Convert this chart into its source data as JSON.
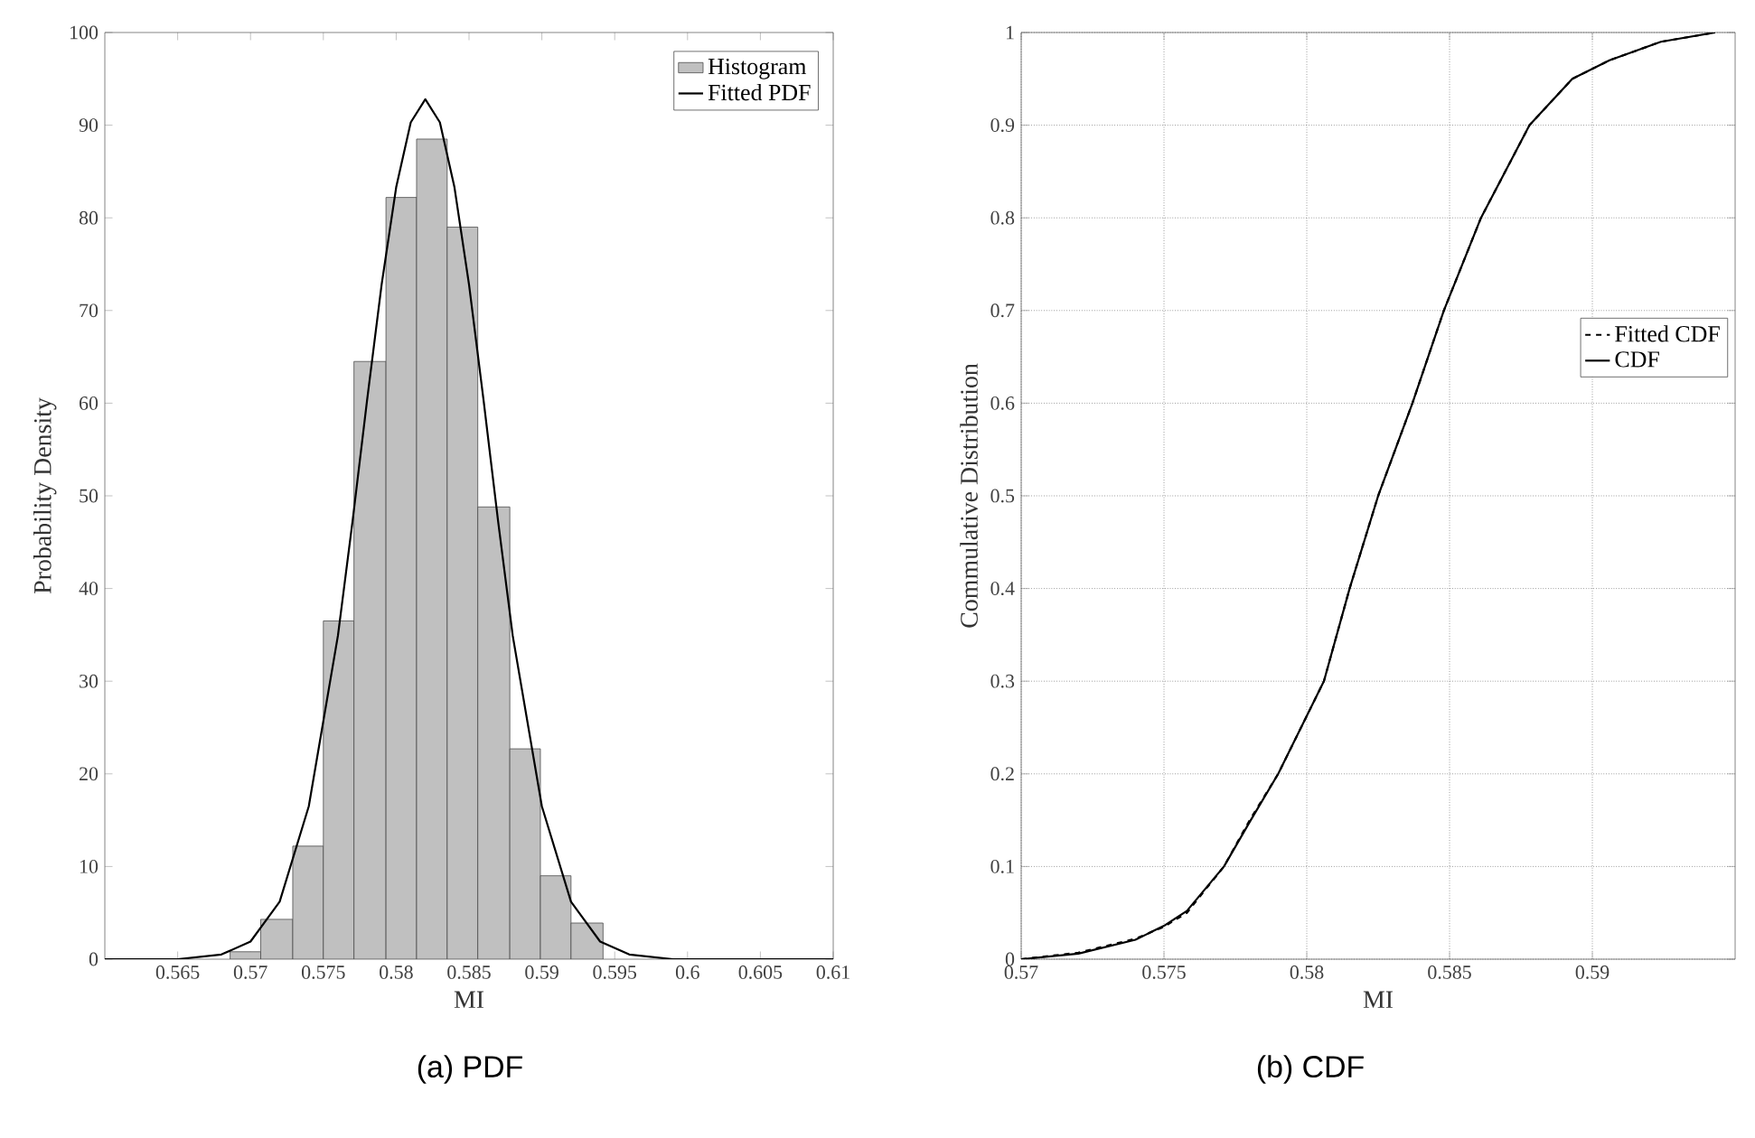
{
  "chart_data": [
    {
      "type": "histogram",
      "xlabel": "MI",
      "ylabel": "Probability Density",
      "annotations": [
        "(a) PDF"
      ],
      "bins": [
        0.5686,
        0.5707,
        0.5729,
        0.575,
        0.5771,
        0.5793,
        0.5814,
        0.5835,
        0.5856,
        0.5878,
        0.5899,
        0.592,
        0.5942
      ],
      "series": [
        {
          "type": "histogram",
          "name": "Histogram",
          "color": "#c0c0c0",
          "values": [
            0.8,
            4.3,
            12.2,
            36.5,
            64.5,
            82.2,
            88.5,
            79.0,
            48.8,
            22.7,
            9.0,
            3.9
          ]
        },
        {
          "type": "line",
          "name": "Fitted PDF",
          "color": "#000000",
          "line_style": "solid",
          "x": [
            0.56,
            0.565,
            0.568,
            0.57,
            0.572,
            0.574,
            0.576,
            0.577,
            0.578,
            0.579,
            0.58,
            0.581,
            0.582,
            0.583,
            0.584,
            0.585,
            0.586,
            0.587,
            0.588,
            0.59,
            0.592,
            0.594,
            0.596,
            0.599,
            0.605,
            0.61
          ],
          "values": [
            0,
            0,
            0.5,
            1.9,
            6.2,
            16.5,
            34.9,
            47.2,
            60.3,
            72.8,
            83.3,
            90.3,
            92.8,
            90.3,
            83.3,
            72.8,
            60.3,
            47.2,
            34.9,
            16.5,
            6.2,
            1.9,
            0.5,
            0,
            0,
            0
          ]
        }
      ],
      "xlim": [
        0.56,
        0.61
      ],
      "ylim": [
        0,
        100
      ],
      "xticks": [
        0.565,
        0.57,
        0.575,
        0.58,
        0.585,
        0.59,
        0.595,
        0.6,
        0.605,
        0.61
      ],
      "yticks": [
        0,
        10,
        20,
        30,
        40,
        50,
        60,
        70,
        80,
        90,
        100
      ],
      "legend": "top right",
      "grid": false
    },
    {
      "type": "line",
      "xlabel": "MI",
      "ylabel": "Commulative Distribution",
      "annotations": [
        "(b) CDF"
      ],
      "series": [
        {
          "name": "Fitted CDF",
          "color": "#000000",
          "line_style": "dashed",
          "x": [
            0.57,
            0.572,
            0.574,
            0.575,
            0.5758,
            0.5771,
            0.578,
            0.579,
            0.5806,
            0.5815,
            0.5825,
            0.5837,
            0.5848,
            0.5861,
            0.5878,
            0.5893,
            0.5906,
            0.5924,
            0.5943
          ],
          "values": [
            0,
            0.007,
            0.022,
            0.035,
            0.05,
            0.1,
            0.15,
            0.2,
            0.3,
            0.4,
            0.5,
            0.6,
            0.7,
            0.8,
            0.9,
            0.95,
            0.97,
            0.99,
            1.0
          ]
        },
        {
          "name": "CDF",
          "color": "#000000",
          "line_style": "solid",
          "x": [
            0.57,
            0.572,
            0.574,
            0.575,
            0.5758,
            0.5771,
            0.578,
            0.579,
            0.5806,
            0.5815,
            0.5825,
            0.5837,
            0.5848,
            0.5861,
            0.5878,
            0.5893,
            0.5906,
            0.5924,
            0.5943
          ],
          "values": [
            0,
            0.006,
            0.021,
            0.036,
            0.052,
            0.1,
            0.148,
            0.2,
            0.3,
            0.4,
            0.5,
            0.6,
            0.7,
            0.8,
            0.9,
            0.95,
            0.97,
            0.99,
            1.0
          ]
        }
      ],
      "xlim": [
        0.57,
        0.595
      ],
      "ylim": [
        0,
        1
      ],
      "xticks": [
        0.57,
        0.575,
        0.58,
        0.585,
        0.59
      ],
      "yticks": [
        0,
        0.1,
        0.2,
        0.3,
        0.4,
        0.5,
        0.6,
        0.7,
        0.8,
        0.9,
        1
      ],
      "legend": "right",
      "grid": true
    }
  ]
}
